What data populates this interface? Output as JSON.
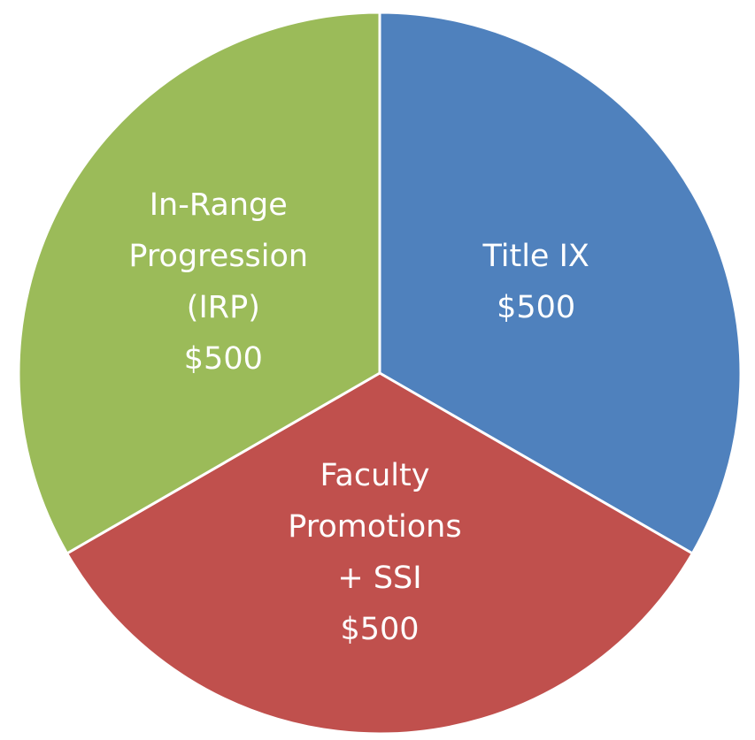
{
  "chart_data": {
    "type": "pie",
    "categories": [
      "Title IX",
      "Faculty Promotions + SSI",
      "In-Range Progression (IRP)"
    ],
    "values": [
      500,
      500,
      500
    ],
    "value_labels": [
      "$500",
      "$500",
      "$500"
    ],
    "colors": [
      "#4f81bd",
      "#c0504d",
      "#9bbb59"
    ]
  }
}
